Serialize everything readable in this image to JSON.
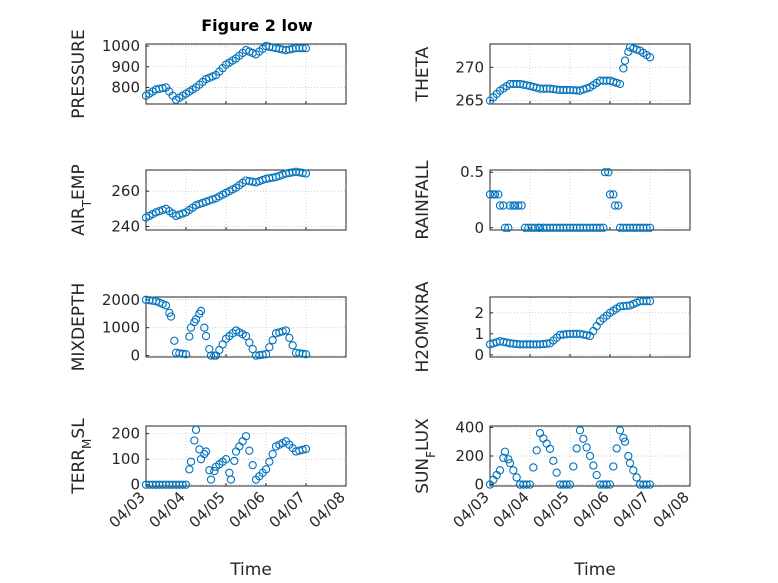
{
  "title": "Figure 2 low",
  "xlabel": "Time",
  "colors": {
    "marker": "#0072BD",
    "axis": "#262626",
    "grid": "#c8c8c8"
  },
  "chart_data": [
    {
      "type": "scatter",
      "ylabel": "PRESSURE",
      "ylim": [
        720,
        1010
      ],
      "yticks": [
        800,
        900,
        1000
      ],
      "grid": true,
      "x_ticks": [],
      "x": [
        "04/03 00:00",
        "04/03 06:00",
        "04/03 12:00",
        "04/03 18:00",
        "04/04 00:00",
        "04/04 06:00",
        "04/04 12:00",
        "04/04 18:00",
        "04/05 00:00",
        "04/05 06:00",
        "04/05 12:00",
        "04/05 18:00",
        "04/06 00:00",
        "04/06 06:00",
        "04/06 12:00",
        "04/06 18:00",
        "04/07 00:00"
      ],
      "y": [
        760,
        790,
        800,
        740,
        770,
        800,
        840,
        860,
        910,
        940,
        980,
        960,
        1000,
        990,
        980,
        990,
        990
      ]
    },
    {
      "type": "scatter",
      "ylabel": "THETA",
      "ylim": [
        264.5,
        273.5
      ],
      "yticks": [
        265,
        270
      ],
      "grid": true,
      "x_ticks": [],
      "x": [
        "04/03 00:00",
        "04/03 06:00",
        "04/03 12:00",
        "04/03 18:00",
        "04/04 00:00",
        "04/04 06:00",
        "04/04 12:00",
        "04/04 18:00",
        "04/05 00:00",
        "04/05 06:00",
        "04/05 12:00",
        "04/05 18:00",
        "04/06 00:00",
        "04/06 06:00",
        "04/06 09:00",
        "04/06 12:00",
        "04/06 18:00",
        "04/07 00:00"
      ],
      "y": [
        265,
        266.5,
        267.5,
        267.5,
        267.2,
        266.8,
        266.8,
        266.6,
        266.6,
        266.5,
        267,
        268,
        268,
        267.5,
        271,
        273,
        272.5,
        271.5
      ]
    },
    {
      "type": "scatter",
      "ylabel": "AIR_TEMP",
      "ylabel_display": [
        "AIR",
        "T",
        "EMP"
      ],
      "ylim": [
        238,
        272
      ],
      "yticks": [
        240,
        260
      ],
      "grid": true,
      "x_ticks": [],
      "x": [
        "04/03 00:00",
        "04/03 06:00",
        "04/03 12:00",
        "04/03 18:00",
        "04/04 00:00",
        "04/04 06:00",
        "04/04 12:00",
        "04/04 18:00",
        "04/05 00:00",
        "04/05 06:00",
        "04/05 12:00",
        "04/05 18:00",
        "04/06 00:00",
        "04/06 06:00",
        "04/06 12:00",
        "04/06 18:00",
        "04/07 00:00"
      ],
      "y": [
        245,
        248,
        250,
        246,
        248,
        252,
        254,
        256,
        259,
        262,
        266,
        265,
        267,
        268,
        270,
        271,
        270
      ]
    },
    {
      "type": "scatter",
      "ylabel": "RAINFALL",
      "ylim": [
        -0.02,
        0.52
      ],
      "yticks": [
        0,
        0.5
      ],
      "ytick_labels": [
        "0",
        "0.5"
      ],
      "grid": true,
      "x_ticks": [],
      "x": [
        "04/03 00:00",
        "04/03 03:00",
        "04/03 06:00",
        "04/03 09:00",
        "04/03 12:00",
        "04/03 15:00",
        "04/03 21:00",
        "04/04 06:00",
        "04/04 18:00",
        "04/05 06:00",
        "04/05 18:00",
        "04/05 21:00",
        "04/06 00:00",
        "04/06 03:00",
        "04/06 06:00",
        "04/06 12:00",
        "04/06 18:00",
        "04/07 00:00"
      ],
      "y": [
        0.3,
        0.3,
        0.2,
        0,
        0.2,
        0.2,
        0,
        0,
        0,
        0,
        0,
        0.5,
        0.3,
        0.2,
        0,
        0,
        0,
        0
      ]
    },
    {
      "type": "scatter",
      "ylabel": "MIXDEPTH",
      "ylim": [
        -50,
        2100
      ],
      "yticks": [
        0,
        1000,
        2000
      ],
      "grid": true,
      "x_ticks": [],
      "x": [
        "04/03 00:00",
        "04/03 06:00",
        "04/03 12:00",
        "04/03 15:00",
        "04/03 18:00",
        "04/04 00:00",
        "04/04 03:00",
        "04/04 06:00",
        "04/04 09:00",
        "04/04 12:00",
        "04/04 15:00",
        "04/04 18:00",
        "04/05 00:00",
        "04/05 06:00",
        "04/05 12:00",
        "04/05 18:00",
        "04/06 00:00",
        "04/06 06:00",
        "04/06 12:00",
        "04/06 18:00",
        "04/07 00:00"
      ],
      "y": [
        2000,
        1950,
        1800,
        1400,
        100,
        50,
        1000,
        1300,
        1600,
        700,
        0,
        0,
        600,
        900,
        700,
        0,
        50,
        800,
        900,
        100,
        50
      ]
    },
    {
      "type": "scatter",
      "ylabel": "H2OMIXRA",
      "ylim": [
        -0.1,
        2.75
      ],
      "yticks": [
        0,
        1,
        2
      ],
      "grid": true,
      "x_ticks": [],
      "x": [
        "04/03 00:00",
        "04/03 06:00",
        "04/03 12:00",
        "04/03 18:00",
        "04/04 00:00",
        "04/04 06:00",
        "04/04 12:00",
        "04/04 18:00",
        "04/05 00:00",
        "04/05 06:00",
        "04/05 12:00",
        "04/05 18:00",
        "04/06 00:00",
        "04/06 06:00",
        "04/06 12:00",
        "04/06 18:00",
        "04/07 00:00"
      ],
      "y": [
        0.5,
        0.65,
        0.55,
        0.5,
        0.5,
        0.5,
        0.55,
        0.95,
        1,
        1,
        0.9,
        1.6,
        2,
        2.3,
        2.35,
        2.55,
        2.55
      ]
    },
    {
      "type": "scatter",
      "ylabel": "TERR_MSL",
      "ylabel_display": [
        "TERR",
        "M",
        "SL"
      ],
      "ylim": [
        -5,
        230
      ],
      "yticks": [
        0,
        100,
        200
      ],
      "grid": true,
      "x_ticks": [
        "04/03",
        "04/04",
        "04/05",
        "04/06",
        "04/07",
        "04/08"
      ],
      "x": [
        "04/03 00:00",
        "04/03 06:00",
        "04/03 12:00",
        "04/03 18:00",
        "04/04 00:00",
        "04/04 03:00",
        "04/04 06:00",
        "04/04 09:00",
        "04/04 12:00",
        "04/04 15:00",
        "04/04 18:00",
        "04/05 00:00",
        "04/05 03:00",
        "04/05 06:00",
        "04/05 12:00",
        "04/05 18:00",
        "04/06 00:00",
        "04/06 06:00",
        "04/06 12:00",
        "04/06 18:00",
        "04/07 00:00"
      ],
      "y": [
        0,
        0,
        0,
        0,
        0,
        90,
        215,
        100,
        130,
        20,
        70,
        100,
        20,
        130,
        190,
        20,
        60,
        150,
        170,
        130,
        140
      ]
    },
    {
      "type": "scatter",
      "ylabel": "SUN_FLUX",
      "ylabel_display": [
        "SUN",
        "F",
        "LUX"
      ],
      "ylim": [
        -10,
        410
      ],
      "yticks": [
        0,
        200,
        400
      ],
      "grid": true,
      "x_ticks": [
        "04/03",
        "04/04",
        "04/05",
        "04/06",
        "04/07",
        "04/08"
      ],
      "x": [
        "04/03 00:00",
        "04/03 06:00",
        "04/03 09:00",
        "04/03 12:00",
        "04/03 18:00",
        "04/04 00:00",
        "04/04 06:00",
        "04/04 12:00",
        "04/04 18:00",
        "04/05 00:00",
        "04/05 06:00",
        "04/05 12:00",
        "04/05 18:00",
        "04/06 00:00",
        "04/06 06:00",
        "04/06 09:00",
        "04/06 12:00",
        "04/06 18:00",
        "04/07 00:00"
      ],
      "y": [
        0,
        100,
        230,
        150,
        0,
        0,
        360,
        250,
        0,
        0,
        380,
        200,
        0,
        0,
        380,
        300,
        150,
        0,
        0
      ]
    }
  ]
}
